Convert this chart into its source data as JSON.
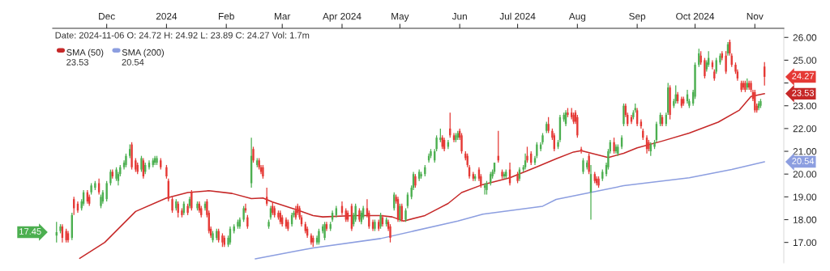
{
  "chart_data": {
    "type": "candlestick",
    "x": [
      "2023-11-05",
      "2023-11-07",
      "2023-11-08",
      "2023-11-10",
      "2023-11-11",
      "2023-11-13",
      "2023-11-14",
      "2023-11-16",
      "2023-11-18",
      "2023-11-19",
      "2023-11-21",
      "2023-11-22",
      "2023-11-23",
      "2023-11-25",
      "2023-11-27",
      "2023-11-28",
      "2023-11-29",
      "2023-12-01",
      "2023-12-03",
      "2023-12-04",
      "2023-12-06",
      "2023-12-07",
      "2023-12-08",
      "2023-12-10",
      "2023-12-11",
      "2023-12-13",
      "2023-12-14",
      "2023-12-16",
      "2023-12-17",
      "2023-12-19",
      "2023-12-20",
      "2023-12-21",
      "2023-12-23",
      "2023-12-25",
      "2023-12-26",
      "2023-12-27",
      "2023-12-29",
      "2024-01-01",
      "2024-01-02",
      "2024-01-04",
      "2024-01-06",
      "2024-01-07",
      "2024-01-09",
      "2024-01-10",
      "2024-01-12",
      "2024-01-13",
      "2024-01-14",
      "2024-01-17",
      "2024-01-18",
      "2024-01-19",
      "2024-01-21",
      "2024-01-22",
      "2024-01-23",
      "2024-01-24",
      "2024-01-25",
      "2024-01-27",
      "2024-01-28",
      "2024-01-30",
      "2024-01-31",
      "2024-02-02",
      "2024-02-03",
      "2024-02-05",
      "2024-02-07",
      "2024-02-08",
      "2024-02-10",
      "2024-02-11",
      "2024-02-12",
      "2024-02-14",
      "2024-02-15",
      "2024-02-17",
      "2024-02-18",
      "2024-02-19",
      "2024-02-20",
      "2024-02-22",
      "2024-02-23",
      "2024-02-24",
      "2024-02-25",
      "2024-02-26",
      "2024-02-28",
      "2024-02-29",
      "2024-03-01",
      "2024-03-03",
      "2024-03-04",
      "2024-03-06",
      "2024-03-07",
      "2024-03-08",
      "2024-03-09",
      "2024-03-10",
      "2024-03-11",
      "2024-03-13",
      "2024-03-14",
      "2024-03-16",
      "2024-03-17",
      "2024-03-19",
      "2024-03-20",
      "2024-03-22",
      "2024-03-23",
      "2024-03-24",
      "2024-03-26",
      "2024-03-27",
      "2024-03-29",
      "2024-04-01",
      "2024-04-03",
      "2024-04-04",
      "2024-04-06",
      "2024-04-07",
      "2024-04-08",
      "2024-04-10",
      "2024-04-11",
      "2024-04-12",
      "2024-04-14",
      "2024-04-15",
      "2024-04-17",
      "2024-04-18",
      "2024-04-20",
      "2024-04-21",
      "2024-04-22",
      "2024-04-24",
      "2024-04-25",
      "2024-04-26",
      "2024-04-28",
      "2024-04-29",
      "2024-04-30",
      "2024-05-01",
      "2024-05-02",
      "2024-05-04",
      "2024-05-05",
      "2024-05-07",
      "2024-05-08",
      "2024-05-09",
      "2024-05-11",
      "2024-05-12",
      "2024-05-14",
      "2024-05-16",
      "2024-05-17",
      "2024-05-19",
      "2024-05-20",
      "2024-05-22",
      "2024-05-23",
      "2024-05-24",
      "2024-05-26",
      "2024-05-27",
      "2024-05-29",
      "2024-05-30",
      "2024-05-31",
      "2024-06-01",
      "2024-06-02",
      "2024-06-04",
      "2024-06-05",
      "2024-06-06",
      "2024-06-08",
      "2024-06-09",
      "2024-06-11",
      "2024-06-12",
      "2024-06-14",
      "2024-06-15",
      "2024-06-17",
      "2024-06-18",
      "2024-06-19",
      "2024-06-21",
      "2024-06-23",
      "2024-06-24",
      "2024-06-25",
      "2024-06-27",
      "2024-07-01",
      "2024-07-02",
      "2024-07-04",
      "2024-07-05",
      "2024-07-06",
      "2024-07-08",
      "2024-07-10",
      "2024-07-11",
      "2024-07-13",
      "2024-07-14",
      "2024-07-16",
      "2024-07-17",
      "2024-07-19",
      "2024-07-20",
      "2024-07-22",
      "2024-07-23",
      "2024-07-25",
      "2024-07-26",
      "2024-07-27",
      "2024-07-29",
      "2024-07-30",
      "2024-07-31",
      "2024-08-01",
      "2024-08-03",
      "2024-08-04",
      "2024-08-06",
      "2024-08-07",
      "2024-08-08",
      "2024-08-10",
      "2024-08-11",
      "2024-08-12",
      "2024-08-14",
      "2024-08-16",
      "2024-08-17",
      "2024-08-18",
      "2024-08-20",
      "2024-08-21",
      "2024-08-22",
      "2024-08-24",
      "2024-08-25",
      "2024-08-26",
      "2024-08-27",
      "2024-08-29",
      "2024-08-30",
      "2024-08-31",
      "2024-09-01",
      "2024-09-03",
      "2024-09-04",
      "2024-09-06",
      "2024-09-07",
      "2024-09-08",
      "2024-09-10",
      "2024-09-11",
      "2024-09-13",
      "2024-09-14",
      "2024-09-16",
      "2024-09-17",
      "2024-09-18",
      "2024-09-20",
      "2024-09-21",
      "2024-09-22",
      "2024-09-24",
      "2024-09-25",
      "2024-09-27",
      "2024-09-28",
      "2024-09-30",
      "2024-10-01",
      "2024-10-03",
      "2024-10-04",
      "2024-10-06",
      "2024-10-07",
      "2024-10-08",
      "2024-10-10",
      "2024-10-11",
      "2024-10-12",
      "2024-10-14",
      "2024-10-15",
      "2024-10-17",
      "2024-10-18",
      "2024-10-19",
      "2024-10-20",
      "2024-10-22",
      "2024-10-23",
      "2024-10-25",
      "2024-10-26",
      "2024-10-27",
      "2024-10-28",
      "2024-10-29",
      "2024-10-30",
      "2024-10-31",
      "2024-11-01",
      "2024-11-02",
      "2024-11-03",
      "2024-11-04",
      "2024-11-06"
    ],
    "ohlc": [
      [
        17.3,
        17.9,
        17.0,
        17.45
      ],
      [
        17.5,
        17.8,
        17.4,
        17.7
      ],
      [
        17.7,
        17.8,
        17.0,
        17.2
      ],
      [
        17.5,
        17.6,
        17.0,
        17.1
      ],
      [
        17.4,
        17.5,
        17.0,
        17.1
      ],
      [
        17.2,
        18.3,
        17.1,
        18.2
      ],
      [
        18.9,
        19.0,
        18.2,
        18.5
      ],
      [
        18.7,
        18.8,
        18.3,
        18.4
      ],
      [
        18.5,
        18.9,
        18.4,
        18.8
      ],
      [
        18.7,
        19.3,
        18.6,
        19.2
      ],
      [
        19.2,
        19.3,
        18.7,
        18.8
      ],
      [
        19.0,
        19.1,
        18.6,
        18.7
      ],
      [
        19.2,
        19.6,
        19.1,
        19.5
      ],
      [
        19.4,
        19.7,
        19.3,
        19.6
      ],
      [
        19.6,
        19.8,
        19.1,
        19.2
      ],
      [
        18.6,
        19.1,
        18.5,
        19.0
      ],
      [
        18.8,
        19.3,
        18.7,
        19.2
      ],
      [
        18.9,
        19.7,
        18.8,
        19.6
      ],
      [
        19.6,
        20.2,
        19.5,
        20.1
      ],
      [
        20.1,
        20.2,
        19.8,
        19.9
      ],
      [
        19.8,
        20.3,
        19.7,
        20.2
      ],
      [
        19.7,
        20.1,
        19.5,
        20.0
      ],
      [
        20.0,
        20.4,
        19.9,
        20.3
      ],
      [
        20.3,
        20.6,
        20.2,
        20.5
      ],
      [
        20.4,
        20.9,
        20.3,
        20.8
      ],
      [
        20.8,
        21.3,
        20.7,
        21.1
      ],
      [
        21.3,
        21.4,
        20.2,
        20.3
      ],
      [
        20.6,
        20.7,
        20.1,
        20.2
      ],
      [
        20.4,
        20.5,
        20.0,
        20.1
      ],
      [
        20.2,
        20.8,
        20.1,
        20.7
      ],
      [
        20.6,
        20.7,
        19.8,
        19.9
      ],
      [
        20.1,
        20.5,
        20.0,
        20.4
      ],
      [
        20.3,
        20.6,
        20.2,
        20.5
      ],
      [
        20.4,
        20.7,
        20.3,
        20.6
      ],
      [
        20.5,
        20.8,
        20.4,
        20.7
      ],
      [
        20.5,
        20.8,
        20.4,
        20.7
      ],
      [
        20.6,
        20.7,
        20.2,
        20.3
      ],
      [
        20.3,
        20.4,
        19.8,
        19.9
      ],
      [
        19.7,
        19.8,
        18.8,
        18.9
      ],
      [
        18.9,
        19.0,
        18.3,
        18.4
      ],
      [
        18.5,
        18.9,
        18.4,
        18.8
      ],
      [
        18.7,
        18.8,
        18.1,
        18.3
      ],
      [
        18.4,
        18.5,
        18.1,
        18.2
      ],
      [
        18.3,
        18.8,
        18.2,
        18.7
      ],
      [
        18.6,
        18.7,
        18.2,
        18.3
      ],
      [
        18.6,
        19.0,
        18.5,
        18.9
      ],
      [
        19.2,
        19.3,
        18.4,
        18.5
      ],
      [
        18.5,
        18.8,
        18.4,
        18.7
      ],
      [
        18.7,
        18.8,
        18.3,
        18.4
      ],
      [
        18.5,
        18.6,
        18.1,
        18.2
      ],
      [
        18.5,
        18.8,
        18.4,
        18.7
      ],
      [
        18.8,
        18.9,
        18.1,
        18.2
      ],
      [
        18.3,
        18.4,
        17.4,
        17.5
      ],
      [
        17.6,
        17.7,
        17.2,
        17.3
      ],
      [
        17.1,
        17.5,
        17.0,
        17.4
      ],
      [
        17.2,
        17.6,
        17.1,
        17.5
      ],
      [
        17.5,
        17.6,
        17.0,
        17.1
      ],
      [
        17.3,
        17.4,
        16.8,
        17.0
      ],
      [
        17.2,
        17.3,
        16.8,
        16.9
      ],
      [
        16.9,
        17.3,
        16.8,
        17.2
      ],
      [
        17.0,
        17.7,
        16.9,
        17.6
      ],
      [
        17.5,
        17.8,
        17.4,
        17.7
      ],
      [
        17.7,
        18.0,
        17.6,
        17.9
      ],
      [
        17.7,
        18.1,
        17.6,
        18.0
      ],
      [
        18.0,
        18.6,
        17.9,
        18.5
      ],
      [
        18.5,
        18.7,
        18.3,
        18.4
      ],
      [
        18.1,
        18.2,
        17.6,
        17.7
      ],
      [
        19.6,
        21.6,
        19.4,
        20.8
      ],
      [
        21.1,
        21.2,
        20.5,
        20.6
      ],
      [
        20.4,
        20.7,
        20.3,
        20.6
      ],
      [
        20.6,
        20.7,
        20.2,
        20.3
      ],
      [
        20.3,
        20.4,
        20.0,
        20.1
      ],
      [
        20.3,
        20.4,
        19.8,
        19.9
      ],
      [
        19.0,
        19.4,
        18.6,
        18.7
      ],
      [
        17.7,
        18.0,
        17.6,
        17.9
      ],
      [
        18.1,
        18.6,
        18.0,
        18.5
      ],
      [
        18.6,
        18.8,
        18.2,
        18.3
      ],
      [
        18.5,
        18.6,
        18.1,
        18.2
      ],
      [
        18.3,
        18.4,
        18.0,
        18.1
      ],
      [
        18.3,
        18.4,
        17.8,
        17.9
      ],
      [
        18.1,
        18.2,
        17.7,
        17.8
      ],
      [
        18.0,
        18.1,
        17.6,
        17.7
      ],
      [
        17.9,
        18.0,
        17.5,
        17.6
      ],
      [
        17.8,
        18.3,
        17.7,
        18.2
      ],
      [
        18.2,
        18.4,
        18.1,
        18.3
      ],
      [
        18.4,
        18.6,
        18.0,
        18.1
      ],
      [
        18.6,
        18.7,
        18.2,
        18.3
      ],
      [
        18.5,
        18.6,
        18.0,
        18.1
      ],
      [
        18.1,
        18.2,
        17.7,
        17.8
      ],
      [
        17.8,
        17.9,
        17.4,
        17.5
      ],
      [
        17.6,
        17.7,
        17.2,
        17.3
      ],
      [
        17.3,
        17.4,
        16.9,
        17.0
      ],
      [
        17.2,
        17.3,
        16.8,
        17.0
      ],
      [
        17.0,
        17.3,
        16.9,
        17.2
      ],
      [
        17.0,
        17.6,
        16.9,
        17.5
      ],
      [
        17.5,
        17.8,
        17.4,
        17.7
      ],
      [
        17.2,
        17.9,
        17.1,
        17.8
      ],
      [
        17.8,
        17.9,
        17.5,
        17.6
      ],
      [
        17.6,
        17.9,
        17.5,
        17.8
      ],
      [
        18.0,
        18.4,
        17.9,
        18.3
      ],
      [
        18.2,
        18.6,
        18.1,
        18.5
      ],
      [
        18.6,
        18.8,
        18.2,
        18.3
      ],
      [
        18.4,
        18.5,
        17.9,
        18.0
      ],
      [
        18.3,
        18.4,
        17.9,
        18.0
      ],
      [
        18.6,
        18.7,
        17.5,
        17.6
      ],
      [
        17.8,
        18.3,
        17.7,
        18.2
      ],
      [
        18.0,
        18.7,
        17.9,
        18.6
      ],
      [
        18.4,
        18.5,
        17.9,
        18.0
      ],
      [
        17.9,
        18.4,
        17.8,
        18.3
      ],
      [
        18.1,
        18.6,
        18.0,
        18.5
      ],
      [
        18.5,
        18.9,
        18.1,
        18.2
      ],
      [
        18.3,
        18.4,
        17.6,
        17.7
      ],
      [
        17.9,
        18.0,
        17.5,
        17.6
      ],
      [
        17.6,
        18.0,
        17.5,
        17.9
      ],
      [
        17.9,
        18.0,
        17.5,
        17.6
      ],
      [
        17.7,
        18.3,
        17.6,
        18.2
      ],
      [
        18.1,
        18.2,
        17.7,
        17.8
      ],
      [
        17.8,
        18.1,
        17.7,
        18.0
      ],
      [
        17.9,
        18.0,
        17.5,
        17.6
      ],
      [
        17.7,
        17.8,
        17.0,
        17.2
      ],
      [
        18.5,
        19.2,
        18.4,
        19.1
      ],
      [
        19.0,
        19.1,
        18.7,
        18.8
      ],
      [
        18.9,
        19.0,
        17.9,
        18.0
      ],
      [
        18.0,
        18.7,
        17.9,
        18.6
      ],
      [
        18.6,
        18.7,
        17.9,
        18.0
      ],
      [
        18.0,
        18.5,
        17.9,
        18.4
      ],
      [
        18.6,
        19.2,
        18.5,
        19.1
      ],
      [
        19.0,
        19.5,
        18.9,
        19.4
      ],
      [
        19.4,
        20.1,
        19.3,
        20.0
      ],
      [
        19.9,
        20.0,
        19.4,
        19.5
      ],
      [
        19.8,
        20.2,
        19.7,
        20.1
      ],
      [
        19.9,
        20.1,
        19.8,
        20.0
      ],
      [
        20.0,
        20.4,
        19.9,
        20.3
      ],
      [
        20.6,
        20.9,
        20.5,
        20.8
      ],
      [
        20.8,
        21.1,
        20.7,
        21.0
      ],
      [
        20.6,
        21.1,
        20.5,
        21.0
      ],
      [
        21.1,
        21.7,
        21.0,
        21.6
      ],
      [
        21.5,
        22.0,
        21.4,
        21.6
      ],
      [
        21.6,
        21.7,
        21.1,
        21.2
      ],
      [
        21.5,
        21.6,
        21.0,
        21.1
      ],
      [
        21.2,
        21.5,
        21.1,
        21.4
      ],
      [
        22.0,
        22.7,
        21.6,
        21.7
      ],
      [
        21.7,
        21.8,
        21.4,
        21.5
      ],
      [
        21.5,
        21.8,
        21.4,
        21.7
      ],
      [
        21.6,
        21.9,
        21.5,
        21.8
      ],
      [
        21.9,
        22.0,
        21.5,
        21.6
      ],
      [
        21.7,
        21.8,
        20.9,
        21.0
      ],
      [
        20.9,
        21.0,
        20.6,
        20.7
      ],
      [
        20.8,
        20.9,
        20.3,
        20.4
      ],
      [
        20.3,
        20.4,
        19.8,
        19.9
      ],
      [
        20.0,
        20.1,
        19.7,
        19.8
      ],
      [
        19.8,
        20.0,
        19.7,
        19.9
      ],
      [
        20.2,
        20.3,
        19.7,
        19.8
      ],
      [
        19.9,
        20.0,
        19.4,
        19.5
      ],
      [
        19.4,
        19.6,
        19.1,
        19.5
      ],
      [
        19.3,
        19.7,
        19.1,
        19.6
      ],
      [
        19.6,
        20.1,
        19.5,
        20.0
      ],
      [
        19.9,
        20.2,
        19.8,
        20.1
      ],
      [
        20.1,
        20.5,
        20.0,
        20.5
      ],
      [
        20.8,
        21.9,
        20.5,
        20.6
      ],
      [
        20.1,
        20.2,
        19.8,
        19.9
      ],
      [
        19.9,
        20.1,
        19.8,
        20.0
      ],
      [
        19.9,
        20.2,
        19.8,
        20.1
      ],
      [
        20.2,
        20.5,
        19.5,
        19.6
      ],
      [
        20.0,
        20.1,
        19.6,
        19.7
      ],
      [
        19.8,
        20.3,
        19.7,
        20.2
      ],
      [
        20.2,
        20.4,
        20.1,
        20.3
      ],
      [
        20.3,
        20.9,
        20.2,
        20.6
      ],
      [
        20.8,
        21.2,
        20.5,
        20.6
      ],
      [
        20.9,
        21.0,
        20.4,
        20.5
      ],
      [
        20.5,
        20.8,
        20.4,
        20.7
      ],
      [
        20.8,
        21.4,
        20.7,
        21.3
      ],
      [
        21.1,
        21.4,
        21.0,
        21.3
      ],
      [
        21.4,
        21.8,
        21.3,
        21.7
      ],
      [
        21.9,
        22.3,
        21.8,
        22.2
      ],
      [
        22.2,
        22.5,
        21.8,
        21.9
      ],
      [
        21.9,
        22.0,
        21.5,
        21.6
      ],
      [
        21.7,
        21.8,
        21.0,
        21.1
      ],
      [
        21.2,
        21.5,
        21.1,
        21.4
      ],
      [
        21.5,
        22.6,
        21.4,
        22.5
      ],
      [
        22.4,
        22.7,
        22.3,
        22.6
      ],
      [
        22.2,
        22.8,
        22.1,
        22.7
      ],
      [
        22.7,
        22.9,
        22.5,
        22.6
      ],
      [
        22.7,
        22.9,
        22.4,
        22.5
      ],
      [
        22.6,
        22.7,
        22.2,
        22.3
      ],
      [
        22.7,
        22.8,
        22.2,
        22.3
      ],
      [
        22.5,
        22.6,
        21.6,
        21.7
      ],
      [
        21.1,
        21.2,
        20.9,
        21.0
      ],
      [
        20.1,
        20.7,
        20.0,
        20.6
      ],
      [
        20.3,
        20.6,
        20.2,
        20.5
      ],
      [
        20.8,
        20.9,
        20.0,
        20.1
      ],
      [
        19.2,
        20.4,
        18.0,
        20.0
      ],
      [
        20.0,
        20.1,
        19.6,
        19.7
      ],
      [
        19.8,
        19.9,
        19.5,
        19.6
      ],
      [
        19.8,
        19.9,
        19.4,
        19.5
      ],
      [
        19.8,
        20.2,
        19.7,
        20.1
      ],
      [
        20.0,
        20.5,
        19.9,
        20.4
      ],
      [
        20.3,
        21.1,
        20.2,
        21.0
      ],
      [
        21.0,
        21.5,
        20.9,
        21.4
      ],
      [
        21.4,
        21.6,
        20.9,
        21.0
      ],
      [
        21.0,
        21.3,
        20.9,
        21.2
      ],
      [
        20.9,
        21.3,
        20.8,
        21.2
      ],
      [
        21.2,
        21.7,
        21.1,
        21.6
      ],
      [
        22.2,
        23.1,
        22.1,
        23.0
      ],
      [
        23.0,
        23.1,
        22.5,
        22.6
      ],
      [
        22.6,
        22.7,
        22.1,
        22.2
      ],
      [
        22.5,
        22.6,
        22.2,
        22.3
      ],
      [
        22.5,
        22.8,
        22.4,
        22.7
      ],
      [
        22.8,
        23.1,
        22.7,
        22.9
      ],
      [
        22.8,
        22.9,
        22.1,
        22.2
      ],
      [
        22.3,
        22.4,
        22.0,
        22.1
      ],
      [
        21.9,
        22.0,
        21.5,
        21.6
      ],
      [
        21.6,
        21.7,
        20.9,
        21.1
      ],
      [
        21.4,
        21.5,
        21.0,
        21.1
      ],
      [
        21.0,
        21.4,
        20.8,
        21.3
      ],
      [
        21.2,
        21.5,
        21.1,
        21.4
      ],
      [
        21.5,
        22.3,
        21.4,
        22.2
      ],
      [
        22.2,
        22.7,
        22.1,
        22.6
      ],
      [
        22.5,
        22.6,
        22.1,
        22.2
      ],
      [
        22.2,
        22.7,
        22.1,
        22.6
      ],
      [
        22.7,
        24.0,
        22.6,
        23.8
      ],
      [
        23.8,
        23.9,
        22.4,
        22.6
      ],
      [
        23.0,
        23.3,
        22.9,
        23.2
      ],
      [
        23.2,
        23.9,
        23.1,
        23.5
      ],
      [
        23.5,
        23.6,
        23.1,
        23.2
      ],
      [
        23.3,
        23.4,
        22.9,
        23.0
      ],
      [
        23.3,
        23.4,
        23.0,
        23.1
      ],
      [
        23.2,
        23.7,
        23.1,
        23.5
      ],
      [
        23.0,
        23.3,
        22.9,
        23.2
      ],
      [
        23.1,
        23.7,
        23.0,
        23.6
      ],
      [
        23.4,
        24.9,
        23.3,
        24.8
      ],
      [
        24.8,
        25.5,
        24.7,
        25.3
      ],
      [
        25.2,
        25.4,
        24.8,
        24.9
      ],
      [
        25.0,
        25.1,
        24.2,
        24.3
      ],
      [
        24.6,
        25.0,
        24.5,
        24.9
      ],
      [
        24.8,
        25.4,
        24.7,
        25.1
      ],
      [
        24.9,
        25.0,
        24.6,
        24.7
      ],
      [
        24.5,
        24.6,
        24.1,
        24.2
      ],
      [
        24.5,
        25.1,
        24.4,
        25.0
      ],
      [
        24.9,
        25.3,
        24.8,
        25.2
      ],
      [
        25.3,
        25.4,
        25.0,
        25.1
      ],
      [
        25.2,
        25.4,
        24.4,
        24.5
      ],
      [
        25.3,
        25.8,
        25.2,
        25.7
      ],
      [
        25.8,
        25.9,
        25.2,
        25.3
      ],
      [
        25.2,
        25.3,
        24.7,
        24.8
      ],
      [
        24.8,
        24.9,
        24.4,
        24.5
      ],
      [
        24.5,
        24.6,
        24.1,
        24.2
      ],
      [
        24.0,
        24.1,
        23.6,
        23.7
      ],
      [
        24.0,
        24.1,
        23.7,
        23.8
      ],
      [
        24.0,
        24.1,
        23.6,
        23.7
      ],
      [
        23.8,
        24.2,
        23.7,
        24.0
      ],
      [
        24.0,
        24.1,
        23.7,
        23.8
      ],
      [
        24.0,
        24.1,
        23.6,
        23.7
      ],
      [
        23.6,
        23.7,
        23.2,
        23.3
      ],
      [
        23.6,
        23.7,
        22.7,
        22.8
      ],
      [
        23.0,
        23.1,
        22.7,
        22.8
      ],
      [
        22.9,
        23.2,
        22.8,
        23.1
      ],
      [
        23.0,
        23.3,
        22.9,
        23.2
      ],
      [
        24.72,
        24.92,
        23.89,
        24.27
      ]
    ],
    "series": [
      {
        "name": "SMA (50)",
        "type": "line",
        "color": "#c62828",
        "x": [
          "2023-11-17",
          "2023-11-30",
          "2023-12-16",
          "2024-01-01",
          "2024-01-12",
          "2024-01-23",
          "2024-02-04",
          "2024-02-14",
          "2024-02-20",
          "2024-02-25",
          "2024-03-09",
          "2024-03-17",
          "2024-03-22",
          "2024-04-07",
          "2024-04-21",
          "2024-04-27",
          "2024-05-03",
          "2024-05-14",
          "2024-05-26",
          "2024-06-02",
          "2024-06-13",
          "2024-06-27",
          "2024-07-11",
          "2024-07-21",
          "2024-07-30",
          "2024-08-03",
          "2024-08-17",
          "2024-08-25",
          "2024-09-01",
          "2024-09-14",
          "2024-09-28",
          "2024-10-13",
          "2024-10-24",
          "2024-10-30",
          "2024-11-06"
        ],
        "values": [
          16.3,
          17.0,
          18.36,
          18.95,
          19.19,
          19.27,
          19.15,
          18.92,
          18.95,
          18.77,
          18.42,
          18.18,
          18.12,
          18.18,
          18.18,
          18.12,
          17.94,
          18.18,
          18.71,
          19.19,
          19.54,
          19.84,
          20.32,
          20.67,
          20.97,
          21.03,
          20.73,
          20.91,
          21.15,
          21.45,
          21.8,
          22.28,
          22.81,
          23.41,
          23.53
        ]
      },
      {
        "name": "SMA (200)",
        "type": "line",
        "color": "#8c9ee0",
        "x": [
          "2024-02-16",
          "2024-03-09",
          "2024-03-17",
          "2024-04-21",
          "2024-05-31",
          "2024-06-13",
          "2024-07-14",
          "2024-07-21",
          "2024-08-04",
          "2024-08-25",
          "2024-09-28",
          "2024-10-20",
          "2024-11-06"
        ],
        "values": [
          16.28,
          16.63,
          16.76,
          17.17,
          17.94,
          18.24,
          18.59,
          18.89,
          19.13,
          19.49,
          19.84,
          20.2,
          20.54
        ]
      }
    ],
    "xlim": [
      "2023-11-03",
      "2024-11-16"
    ],
    "xticks": [
      {
        "value": "2023-12-01",
        "label": "Dec"
      },
      {
        "value": "2024-01-01",
        "label": "2024"
      },
      {
        "value": "2024-02-01",
        "label": "Feb"
      },
      {
        "value": "2024-03-01",
        "label": "Mar"
      },
      {
        "value": "2024-04-01",
        "label": "Apr 2024"
      },
      {
        "value": "2024-05-01",
        "label": "May"
      },
      {
        "value": "2024-06-01",
        "label": "Jun"
      },
      {
        "value": "2024-07-01",
        "label": "Jul 2024"
      },
      {
        "value": "2024-08-01",
        "label": "Aug"
      },
      {
        "value": "2024-09-01",
        "label": "Sep"
      },
      {
        "value": "2024-10-01",
        "label": "Oct 2024"
      },
      {
        "value": "2024-11-01",
        "label": "Nov"
      }
    ],
    "ylim": [
      16.1,
      26.4
    ],
    "yticks": [
      {
        "value": 17,
        "label": "17.00"
      },
      {
        "value": 18,
        "label": "18.00"
      },
      {
        "value": 19,
        "label": "19.00"
      },
      {
        "value": 20,
        "label": "20.00"
      },
      {
        "value": 21,
        "label": "21.00"
      },
      {
        "value": 22,
        "label": "22.00"
      },
      {
        "value": 23,
        "label": "23.00"
      },
      {
        "value": 24,
        "label": null
      },
      {
        "value": 25,
        "label": "25.00"
      },
      {
        "value": 26,
        "label": "26.00"
      }
    ],
    "annotations": [
      "Date: 2024-11-06 O: 24.72 H: 24.92 L: 23.89 C: 24.27 Vol: 1.7m",
      "23.53",
      "20.54",
      "24.27",
      "23.53",
      "20.54",
      {
        "text": "17.45",
        "x": "2023-11-05",
        "y": 17.45
      }
    ],
    "legend": "top left",
    "grid": false,
    "marker": "none",
    "line_style": "solid"
  }
}
